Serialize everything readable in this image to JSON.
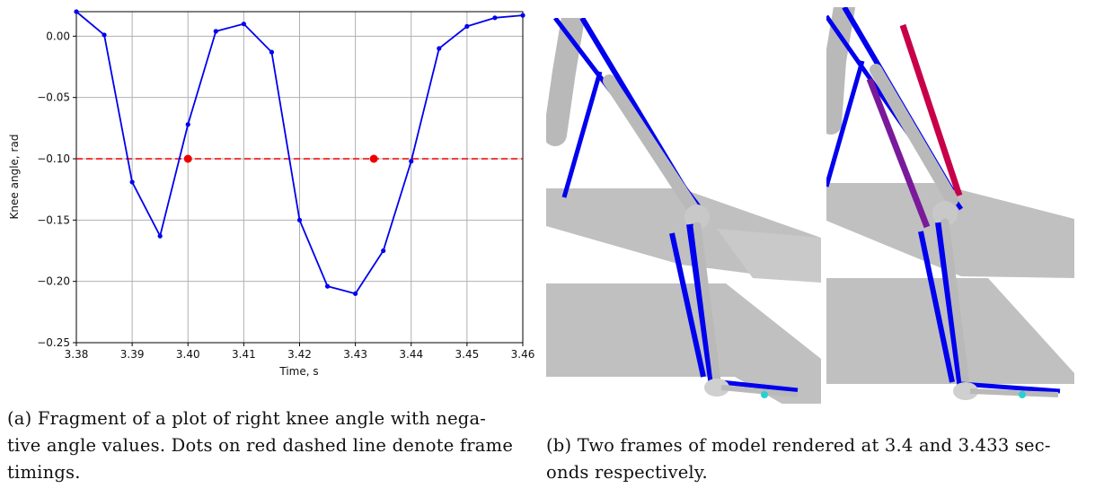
{
  "chart_data": {
    "type": "line",
    "title": "",
    "xlabel": "Time, s",
    "ylabel": "Knee angle, rad",
    "xlim": [
      3.38,
      3.46
    ],
    "ylim": [
      -0.25,
      0.02
    ],
    "grid": true,
    "x_ticks": [
      "3.38",
      "3.39",
      "3.40",
      "3.41",
      "3.42",
      "3.43",
      "3.44",
      "3.45",
      "3.46"
    ],
    "y_ticks": [
      "0.00",
      "−0.05",
      "−0.10",
      "−0.15",
      "−0.20",
      "−0.25"
    ],
    "series": [
      {
        "color": "#0000ee",
        "x": [
          3.38,
          3.385,
          3.39,
          3.395,
          3.4,
          3.405,
          3.41,
          3.415,
          3.42,
          3.425,
          3.43,
          3.435,
          3.44,
          3.445,
          3.45,
          3.455,
          3.46
        ],
        "y": [
          0.02,
          0.001,
          -0.119,
          -0.163,
          -0.072,
          0.004,
          0.01,
          -0.013,
          -0.15,
          -0.204,
          -0.21,
          -0.175,
          -0.102,
          -0.01,
          0.008,
          0.015,
          0.017
        ]
      }
    ],
    "threshold": {
      "y": -0.1,
      "color": "#ee0000",
      "style": "dashed"
    },
    "frame_markers": {
      "color": "#ee0000",
      "x": [
        3.4,
        3.4333
      ],
      "y": [
        -0.1,
        -0.1
      ]
    }
  },
  "captions": {
    "a_line1": "(a) Fragment of a plot of right knee angle with nega-",
    "a_line2": "tive angle values. Dots on red dashed line denote frame",
    "a_line3": "timings.",
    "b_line1": "(b) Two frames of model rendered at 3.4 and 3.433 sec-",
    "b_line2": "onds respectively."
  }
}
